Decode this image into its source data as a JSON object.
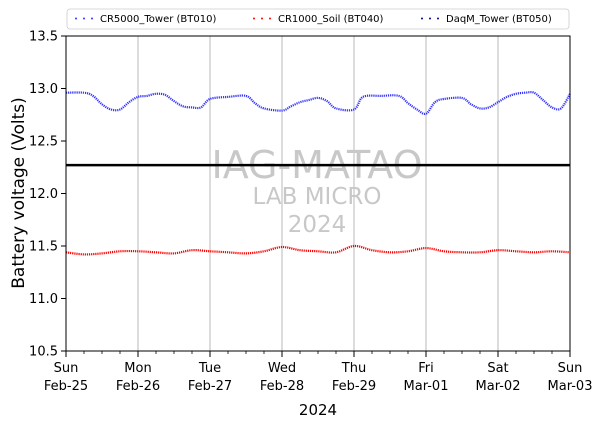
{
  "chart_data": {
    "type": "line",
    "title": "",
    "xlabel": "2024",
    "ylabel": "Battery voltage (Volts)",
    "ylim": [
      10.5,
      13.5
    ],
    "yticks": [
      "10.5",
      "11.0",
      "11.5",
      "12.0",
      "12.5",
      "13.0",
      "13.5"
    ],
    "xlim": [
      "2024-02-25",
      "2024-03-03"
    ],
    "xticks": [
      {
        "day": "Sun",
        "date": "Feb-25"
      },
      {
        "day": "Mon",
        "date": "Feb-26"
      },
      {
        "day": "Tue",
        "date": "Feb-27"
      },
      {
        "day": "Wed",
        "date": "Feb-28"
      },
      {
        "day": "Thu",
        "date": "Feb-29"
      },
      {
        "day": "Fri",
        "date": "Mar-01"
      },
      {
        "day": "Sat",
        "date": "Mar-02"
      },
      {
        "day": "Sun",
        "date": "Mar-03"
      }
    ],
    "grid": "vertical at major x ticks",
    "legend_position": "top",
    "reference_line": {
      "y": 12.27,
      "color": "#000000"
    },
    "watermark": [
      "IAG-MATAO",
      "LAB MICRO",
      "2024"
    ],
    "series": [
      {
        "name": "CR5000_Tower (BT010)",
        "color": "#3333ff",
        "points": [
          [
            "2024-02-25 00:00",
            12.96
          ],
          [
            "2024-02-25 06:00",
            12.96
          ],
          [
            "2024-02-25 09:00",
            12.93
          ],
          [
            "2024-02-25 12:00",
            12.85
          ],
          [
            "2024-02-25 15:00",
            12.8
          ],
          [
            "2024-02-25 18:00",
            12.8
          ],
          [
            "2024-02-25 21:00",
            12.87
          ],
          [
            "2024-02-26 00:00",
            12.92
          ],
          [
            "2024-02-26 03:00",
            12.93
          ],
          [
            "2024-02-26 06:00",
            12.95
          ],
          [
            "2024-02-26 09:00",
            12.94
          ],
          [
            "2024-02-26 12:00",
            12.88
          ],
          [
            "2024-02-26 15:00",
            12.83
          ],
          [
            "2024-02-26 18:00",
            12.82
          ],
          [
            "2024-02-26 21:00",
            12.82
          ],
          [
            "2024-02-27 00:00",
            12.9
          ],
          [
            "2024-02-27 06:00",
            12.92
          ],
          [
            "2024-02-27 12:00",
            12.93
          ],
          [
            "2024-02-27 15:00",
            12.86
          ],
          [
            "2024-02-27 18:00",
            12.81
          ],
          [
            "2024-02-28 00:00",
            12.79
          ],
          [
            "2024-02-28 03:00",
            12.83
          ],
          [
            "2024-02-28 06:00",
            12.87
          ],
          [
            "2024-02-28 09:00",
            12.89
          ],
          [
            "2024-02-28 12:00",
            12.91
          ],
          [
            "2024-02-28 15:00",
            12.88
          ],
          [
            "2024-02-28 18:00",
            12.81
          ],
          [
            "2024-02-29 00:00",
            12.8
          ],
          [
            "2024-02-29 03:00",
            12.92
          ],
          [
            "2024-02-29 09:00",
            12.93
          ],
          [
            "2024-02-29 15:00",
            12.93
          ],
          [
            "2024-02-29 18:00",
            12.86
          ],
          [
            "2024-02-29 21:00",
            12.8
          ],
          [
            "2024-03-01 00:00",
            12.76
          ],
          [
            "2024-03-01 03:00",
            12.87
          ],
          [
            "2024-03-01 06:00",
            12.9
          ],
          [
            "2024-03-01 12:00",
            12.91
          ],
          [
            "2024-03-01 15:00",
            12.85
          ],
          [
            "2024-03-01 18:00",
            12.81
          ],
          [
            "2024-03-01 21:00",
            12.82
          ],
          [
            "2024-03-02 00:00",
            12.87
          ],
          [
            "2024-03-02 03:00",
            12.92
          ],
          [
            "2024-03-02 06:00",
            12.95
          ],
          [
            "2024-03-02 09:00",
            12.96
          ],
          [
            "2024-03-02 12:00",
            12.96
          ],
          [
            "2024-03-02 15:00",
            12.89
          ],
          [
            "2024-03-02 18:00",
            12.82
          ],
          [
            "2024-03-02 21:00",
            12.81
          ],
          [
            "2024-03-03 00:00",
            12.95
          ]
        ]
      },
      {
        "name": "CR1000_Soil (BT040)",
        "color": "#ff0000",
        "points": [
          [
            "2024-02-25 00:00",
            11.44
          ],
          [
            "2024-02-25 06:00",
            11.42
          ],
          [
            "2024-02-25 12:00",
            11.43
          ],
          [
            "2024-02-25 18:00",
            11.45
          ],
          [
            "2024-02-26 00:00",
            11.45
          ],
          [
            "2024-02-26 06:00",
            11.44
          ],
          [
            "2024-02-26 12:00",
            11.43
          ],
          [
            "2024-02-26 18:00",
            11.46
          ],
          [
            "2024-02-27 00:00",
            11.45
          ],
          [
            "2024-02-27 06:00",
            11.44
          ],
          [
            "2024-02-27 12:00",
            11.43
          ],
          [
            "2024-02-27 18:00",
            11.45
          ],
          [
            "2024-02-28 00:00",
            11.49
          ],
          [
            "2024-02-28 06:00",
            11.46
          ],
          [
            "2024-02-28 12:00",
            11.45
          ],
          [
            "2024-02-28 18:00",
            11.44
          ],
          [
            "2024-02-29 00:00",
            11.5
          ],
          [
            "2024-02-29 06:00",
            11.46
          ],
          [
            "2024-02-29 12:00",
            11.44
          ],
          [
            "2024-02-29 18:00",
            11.45
          ],
          [
            "2024-03-01 00:00",
            11.48
          ],
          [
            "2024-03-01 06:00",
            11.45
          ],
          [
            "2024-03-01 12:00",
            11.44
          ],
          [
            "2024-03-01 18:00",
            11.44
          ],
          [
            "2024-03-02 00:00",
            11.46
          ],
          [
            "2024-03-02 06:00",
            11.45
          ],
          [
            "2024-03-02 12:00",
            11.44
          ],
          [
            "2024-03-02 18:00",
            11.45
          ],
          [
            "2024-03-03 00:00",
            11.44
          ]
        ]
      },
      {
        "name": "DaqM_Tower (BT050)",
        "color": "#000080",
        "points": []
      }
    ]
  }
}
